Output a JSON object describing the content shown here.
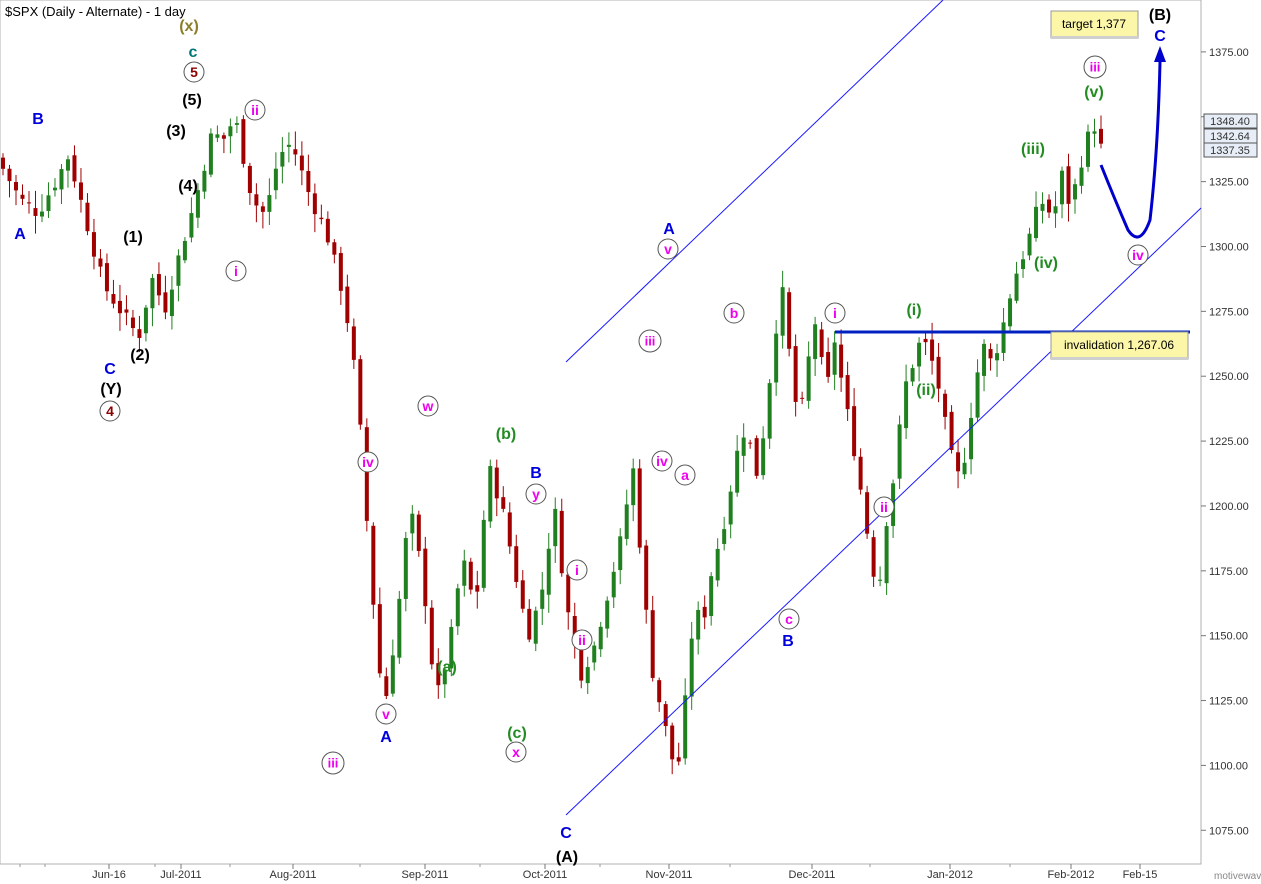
{
  "title": "$SPX (Daily - Alternate) - 1 day",
  "watermark": "motivewave.com",
  "colors": {
    "up": "#208020",
    "down": "#a00000",
    "channel": "#1a1aff",
    "invalidation_line": "#0020c0",
    "projection": "#0000cc",
    "box_bg": "#fbf6a8",
    "price_box_bg": "#e8eef7",
    "black_label": "#000000",
    "blue_label": "#0000dd",
    "green_label": "#228b22",
    "magenta_label": "#ee00ee",
    "darkred_label": "#8b0000",
    "teal_label": "#007777",
    "olive_label": "#8b7d2a"
  },
  "chart_data": {
    "type": "candlestick",
    "title": "$SPX (Daily - Alternate) - 1 day",
    "ylim": [
      1062,
      1395
    ],
    "y_ticks": [
      "1075.00",
      "1100.00",
      "1125.00",
      "1150.00",
      "1175.00",
      "1200.00",
      "1225.00",
      "1250.00",
      "1275.00",
      "1300.00",
      "1325.00",
      "1350.00",
      "1375.00"
    ],
    "x_ticks": [
      "Jun-16",
      "Jul-2011",
      "Aug-2011",
      "Sep-2011",
      "Oct-2011",
      "Nov-2011",
      "Dec-2011",
      "Jan-2012",
      "Feb-2012",
      "Feb-15"
    ],
    "price_boxes": [
      "1348.40",
      "1342.64",
      "1337.35"
    ],
    "target_text": "target 1,377",
    "invalidation_text": "invalidation 1,267.06",
    "invalidation_level": 1267.06,
    "bar_count": 170,
    "anchors": [
      [
        0,
        1330
      ],
      [
        4,
        1318
      ],
      [
        8,
        1313
      ],
      [
        12,
        1325
      ],
      [
        15,
        1335
      ],
      [
        19,
        1310
      ],
      [
        23,
        1285
      ],
      [
        27,
        1275
      ],
      [
        31,
        1265
      ],
      [
        34,
        1288
      ],
      [
        37,
        1276
      ],
      [
        40,
        1295
      ],
      [
        44,
        1318
      ],
      [
        48,
        1345
      ],
      [
        50,
        1340
      ],
      [
        53,
        1350
      ],
      [
        57,
        1318
      ],
      [
        60,
        1312
      ],
      [
        63,
        1335
      ],
      [
        66,
        1340
      ],
      [
        70,
        1320
      ],
      [
        74,
        1305
      ],
      [
        78,
        1280
      ],
      [
        81,
        1245
      ],
      [
        84,
        1175
      ],
      [
        87,
        1120
      ],
      [
        90,
        1155
      ],
      [
        93,
        1200
      ],
      [
        96,
        1172
      ],
      [
        99,
        1125
      ],
      [
        102,
        1145
      ],
      [
        105,
        1180
      ],
      [
        108,
        1160
      ],
      [
        111,
        1215
      ],
      [
        114,
        1200
      ],
      [
        117,
        1175
      ],
      [
        120,
        1150
      ],
      [
        123,
        1165
      ],
      [
        126,
        1200
      ],
      [
        129,
        1160
      ],
      [
        132,
        1135
      ],
      [
        135,
        1145
      ],
      [
        138,
        1165
      ],
      [
        141,
        1185
      ],
      [
        144,
        1215
      ],
      [
        146,
        1178
      ],
      [
        148,
        1140
      ],
      [
        150,
        1125
      ],
      [
        152,
        1110
      ],
      [
        154,
        1095
      ],
      [
        156,
        1125
      ],
      [
        158,
        1160
      ],
      [
        160,
        1155
      ],
      [
        162,
        1175
      ],
      [
        165,
        1195
      ],
      [
        168,
        1222
      ],
      [
        170,
        1232
      ],
      [
        172,
        1210
      ],
      [
        174,
        1230
      ],
      [
        176,
        1260
      ],
      [
        178,
        1285
      ],
      [
        180,
        1255
      ],
      [
        182,
        1230
      ],
      [
        184,
        1255
      ],
      [
        186,
        1274
      ],
      [
        188,
        1240
      ],
      [
        190,
        1265
      ],
      [
        192,
        1245
      ],
      [
        195,
        1218
      ],
      [
        198,
        1185
      ],
      [
        200,
        1165
      ],
      [
        202,
        1195
      ],
      [
        204,
        1215
      ],
      [
        206,
        1245
      ],
      [
        208,
        1255
      ],
      [
        210,
        1265
      ],
      [
        212,
        1258
      ],
      [
        214,
        1245
      ],
      [
        216,
        1225
      ],
      [
        218,
        1210
      ],
      [
        220,
        1220
      ],
      [
        222,
        1245
      ],
      [
        224,
        1262
      ],
      [
        226,
        1255
      ],
      [
        228,
        1265
      ],
      [
        230,
        1280
      ],
      [
        232,
        1292
      ],
      [
        234,
        1300
      ],
      [
        236,
        1312
      ],
      [
        238,
        1318
      ],
      [
        240,
        1310
      ],
      [
        242,
        1328
      ],
      [
        244,
        1315
      ],
      [
        246,
        1330
      ],
      [
        248,
        1342
      ],
      [
        250,
        1348
      ],
      [
        251,
        1338
      ]
    ],
    "annotations": [
      {
        "text": "(x)",
        "color": "olive_label",
        "circle": false,
        "x": 0,
        "y": 1385
      },
      {
        "text": "c",
        "color": "teal_label",
        "circle": false,
        "x": 0,
        "y": 1373
      },
      {
        "text": "5",
        "color": "darkred_label",
        "circle": true,
        "x": 0,
        "y": 1361
      },
      {
        "text": "(5)",
        "color": "black_label",
        "circle": false,
        "x": 0,
        "y": 1351
      },
      {
        "text": "(3)",
        "color": "black_label",
        "circle": false,
        "x": 0,
        "y": 1341
      },
      {
        "text": "(4)",
        "color": "black_label",
        "circle": false,
        "x": 0,
        "y": 1331
      },
      {
        "text": "ii",
        "color": "magenta_label",
        "circle": true,
        "x": 0,
        "y": 1345
      },
      {
        "text": "i",
        "color": "magenta_label",
        "circle": true,
        "x": 0,
        "y": 1292
      },
      {
        "text": "B",
        "color": "blue_label",
        "circle": false,
        "x": 0,
        "y": 1342
      },
      {
        "text": "A",
        "color": "blue_label",
        "circle": false,
        "x": 0,
        "y": 1305
      },
      {
        "text": "(1)",
        "color": "black_label",
        "circle": false,
        "x": 0,
        "y": 1299
      },
      {
        "text": "(2)",
        "color": "black_label",
        "circle": false,
        "x": 0,
        "y": 1260
      },
      {
        "text": "C",
        "color": "blue_label",
        "circle": false,
        "x": 0,
        "y": 1254
      },
      {
        "text": "(Y)",
        "color": "black_label",
        "circle": false,
        "x": 0,
        "y": 1245
      },
      {
        "text": "4",
        "color": "darkred_label",
        "circle": true,
        "x": 0,
        "y": 1234
      },
      {
        "text": "w",
        "color": "magenta_label",
        "circle": true,
        "x": 0,
        "y": 1231
      },
      {
        "text": "iv",
        "color": "magenta_label",
        "circle": true,
        "x": 0,
        "y": 1215
      },
      {
        "text": "v",
        "color": "magenta_label",
        "circle": true,
        "x": 0,
        "y": 1117
      },
      {
        "text": "A",
        "color": "blue_label",
        "circle": false,
        "x": 0,
        "y": 1107
      },
      {
        "text": "iii",
        "color": "magenta_label",
        "circle": true,
        "x": 0,
        "y": 1099
      },
      {
        "text": "(b)",
        "color": "green_label",
        "circle": false,
        "x": 0,
        "y": 1226
      },
      {
        "text": "B",
        "color": "blue_label",
        "circle": false,
        "x": 0,
        "y": 1211
      },
      {
        "text": "y",
        "color": "magenta_label",
        "circle": true,
        "x": 0,
        "y": 1201
      },
      {
        "text": "(a)",
        "color": "green_label",
        "circle": false,
        "x": 0,
        "y": 1139
      },
      {
        "text": "(c)",
        "color": "green_label",
        "circle": false,
        "x": 0,
        "y": 1111
      },
      {
        "text": "x",
        "color": "magenta_label",
        "circle": true,
        "x": 0,
        "y": 1102
      },
      {
        "text": "C",
        "color": "blue_label",
        "circle": false,
        "x": 0,
        "y": 1072
      },
      {
        "text": "(A)",
        "color": "black_label",
        "circle": false,
        "x": 0,
        "y": 1062
      },
      {
        "text": "i",
        "color": "magenta_label",
        "circle": true,
        "x": 0,
        "y": 1168
      },
      {
        "text": "ii",
        "color": "magenta_label",
        "circle": true,
        "x": 0,
        "y": 1147
      },
      {
        "text": "A",
        "color": "blue_label",
        "circle": false,
        "x": 0,
        "y": 1306
      },
      {
        "text": "v",
        "color": "magenta_label",
        "circle": true,
        "x": 0,
        "y": 1296
      },
      {
        "text": "iii",
        "color": "magenta_label",
        "circle": true,
        "x": 0,
        "y": 1255
      },
      {
        "text": "iv",
        "color": "magenta_label",
        "circle": true,
        "x": 0,
        "y": 1218
      },
      {
        "text": "a",
        "color": "magenta_label",
        "circle": true,
        "x": 0,
        "y": 1213
      },
      {
        "text": "b",
        "color": "magenta_label",
        "circle": true,
        "x": 0,
        "y": 1270
      },
      {
        "text": "c",
        "color": "magenta_label",
        "circle": true,
        "x": 0,
        "y": 1160
      },
      {
        "text": "B",
        "color": "blue_label",
        "circle": false,
        "x": 0,
        "y": 1151
      },
      {
        "text": "i",
        "color": "magenta_label",
        "circle": true,
        "x": 0,
        "y": 1271
      },
      {
        "text": "ii",
        "color": "magenta_label",
        "circle": true,
        "x": 0,
        "y": 1196
      },
      {
        "text": "(i)",
        "color": "green_label",
        "circle": false,
        "x": 0,
        "y": 1276
      },
      {
        "text": "(ii)",
        "color": "green_label",
        "circle": false,
        "x": 0,
        "y": 1243
      },
      {
        "text": "(iii)",
        "color": "green_label",
        "circle": false,
        "x": 0,
        "y": 1331
      },
      {
        "text": "(iv)",
        "color": "green_label",
        "circle": false,
        "x": 0,
        "y": 1296
      },
      {
        "text": "(v)",
        "color": "green_label",
        "circle": false,
        "x": 0,
        "y": 1357
      },
      {
        "text": "iii",
        "color": "magenta_label",
        "circle": true,
        "x": 0,
        "y": 1366
      },
      {
        "text": "iv",
        "color": "magenta_label",
        "circle": true,
        "x": 0,
        "y": 1299
      },
      {
        "text": "(B)",
        "color": "black_label",
        "circle": false,
        "x": 0,
        "y": 1391
      },
      {
        "text": "C",
        "color": "blue_label",
        "circle": false,
        "x": 0,
        "y": 1380
      }
    ]
  }
}
